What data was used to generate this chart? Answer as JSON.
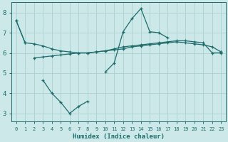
{
  "xlabel": "Humidex (Indice chaleur)",
  "background_color": "#cce8e8",
  "grid_color": "#aad0d0",
  "line_color": "#1e6b6b",
  "xlim": [
    -0.5,
    23.5
  ],
  "ylim": [
    2.6,
    8.5
  ],
  "yticks": [
    3,
    4,
    5,
    6,
    7,
    8
  ],
  "xticks": [
    0,
    1,
    2,
    3,
    4,
    5,
    6,
    7,
    8,
    9,
    10,
    11,
    12,
    13,
    14,
    15,
    16,
    17,
    18,
    19,
    20,
    21,
    22,
    23
  ],
  "line1_x": [
    0,
    1,
    2,
    3,
    4,
    5,
    6,
    7,
    8,
    9,
    10,
    11,
    12,
    13,
    14,
    15,
    16,
    17,
    18,
    19,
    20,
    21,
    22,
    23
  ],
  "line1_y": [
    7.6,
    6.5,
    6.45,
    6.35,
    6.2,
    6.1,
    6.05,
    6.0,
    6.0,
    6.05,
    6.1,
    6.15,
    6.2,
    6.3,
    6.35,
    6.4,
    6.45,
    6.5,
    6.55,
    6.5,
    6.45,
    6.4,
    6.3,
    6.05
  ],
  "line2_x": [
    2,
    3,
    4,
    5,
    6,
    7,
    8,
    9,
    10,
    11,
    12,
    13,
    14,
    15,
    16,
    17,
    18,
    19,
    20,
    21,
    22,
    23
  ],
  "line2_y": [
    5.75,
    5.8,
    5.85,
    5.9,
    5.95,
    6.0,
    6.0,
    6.05,
    6.1,
    6.2,
    6.3,
    6.35,
    6.4,
    6.45,
    6.5,
    6.55,
    6.6,
    6.6,
    6.55,
    6.5,
    6.0,
    6.0
  ],
  "line3_x": [
    0,
    1,
    2,
    3,
    4,
    5,
    6,
    7,
    8,
    9,
    10,
    11,
    12,
    13,
    14,
    15,
    16,
    17,
    18,
    19,
    20,
    21,
    22,
    23
  ],
  "line3_y": [
    7.6,
    6.5,
    null,
    4.65,
    4.0,
    3.55,
    3.0,
    3.35,
    3.6,
    null,
    5.05,
    5.5,
    7.05,
    7.7,
    8.2,
    7.05,
    7.0,
    6.75,
    null,
    null,
    null,
    null,
    null,
    6.05
  ]
}
